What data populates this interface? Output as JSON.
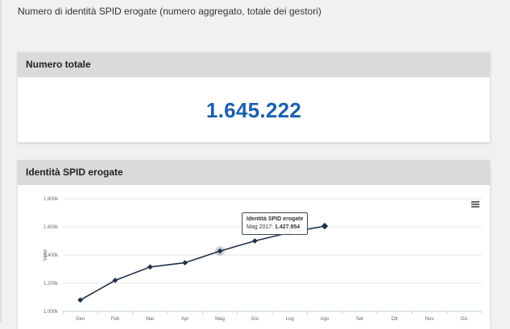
{
  "page": {
    "title": "Numero di identità SPID erogate (numero aggregato, totale dei gestori)"
  },
  "total_card": {
    "header": "Numero totale",
    "value": "1.645.222"
  },
  "chart_card": {
    "header": "Identità SPID erogate",
    "menu_icon": "hamburger-menu-icon",
    "tooltip": {
      "title": "Identità SPID erogate",
      "label": "Mag 2017: ",
      "value": "1.427.954"
    }
  },
  "colors": {
    "accent": "#1b5fad",
    "series": "#1e3147",
    "header_bg": "#d9dadc"
  },
  "chart_data": {
    "type": "line",
    "categories": [
      "Gen",
      "Feb",
      "Mar",
      "Apr",
      "Mag",
      "Giu",
      "Lug",
      "Ago",
      "Set",
      "Ott",
      "Nov",
      "Dic"
    ],
    "series": [
      {
        "name": "Identità SPID erogate",
        "values": [
          1080000,
          1220000,
          1315000,
          1345000,
          1427954,
          1500000,
          1560000,
          1605000,
          null,
          null,
          null,
          null
        ]
      }
    ],
    "ylabel": "Valori",
    "yticks": [
      "1.000k",
      "1.200k",
      "1.400k",
      "1.600k",
      "1.800k"
    ],
    "ylim": [
      1000000,
      1800000
    ],
    "grid": true,
    "highlighted_index": 4
  }
}
